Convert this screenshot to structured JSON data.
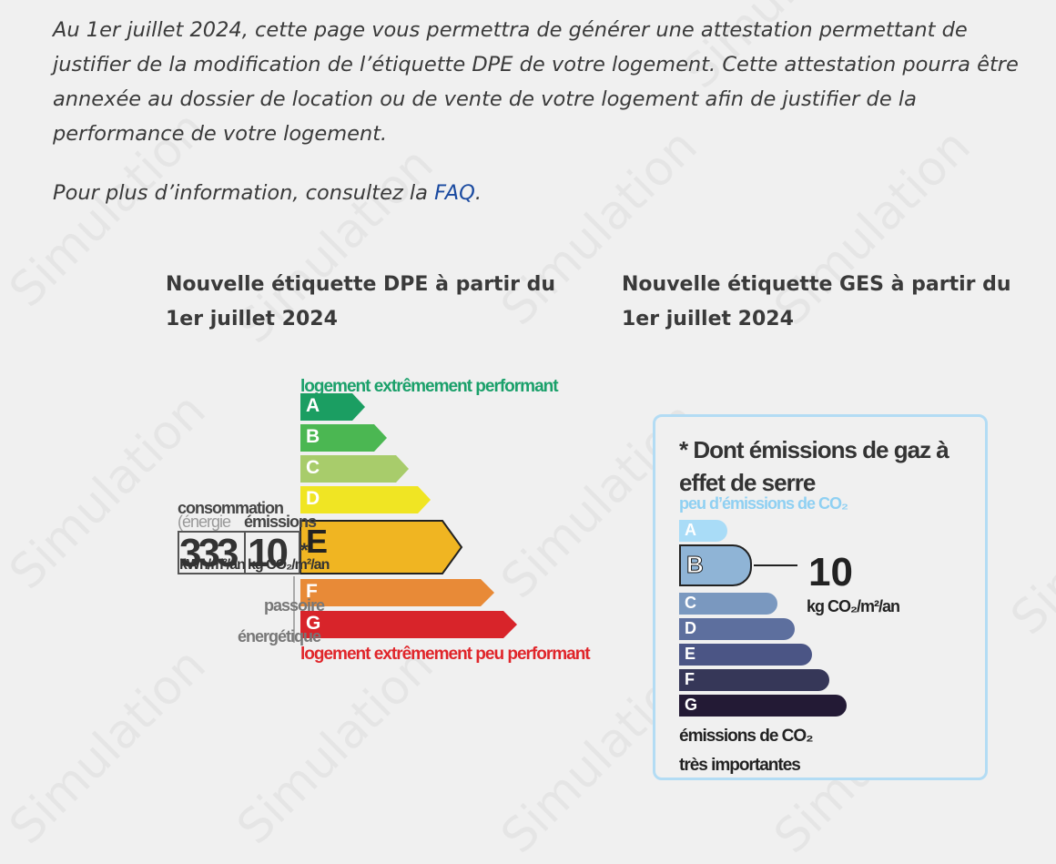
{
  "intro": {
    "text": "Au 1er juillet 2024, cette page vous permettra de générer une attestation permettant de justifier de la modification de l’étiquette DPE de votre logement. Cette attestation pourra être annexée au dossier de location ou de vente de votre logement afin de justifier de la performance de votre logement.",
    "more_prefix": "Pour plus d’information, consultez la ",
    "faq_link": "FAQ",
    "more_suffix": "."
  },
  "dpe": {
    "title": "Nouvelle étiquette DPE à partir du 1er juillet 2024",
    "top_caption": "logement extrêmement performant",
    "bottom_caption": "logement extrêmement peu performant",
    "classes": [
      "A",
      "B",
      "C",
      "D",
      "E",
      "F",
      "G"
    ],
    "current_class": "E",
    "consumption_label": "consommation",
    "energy_label": "(énergie",
    "emissions_label": "émissions",
    "consumption_value": "333",
    "emissions_value": "10",
    "star": "*",
    "unit_energy": "kWh/m²/an",
    "unit_co2": "kg CO₂/m²/an",
    "passoire_1": "passoire",
    "passoire_2": "énergétique",
    "colors": [
      "#1b9e62",
      "#4bb752",
      "#a8cc6b",
      "#f0e523",
      "#f0b522",
      "#e88a37",
      "#d8242a"
    ]
  },
  "ges": {
    "title": "Nouvelle étiquette GES à partir du 1er juillet 2024",
    "head": "* Dont émissions de gaz à effet de serre",
    "top_caption": "peu d’émissions de CO₂",
    "classes": [
      "A",
      "B",
      "C",
      "D",
      "E",
      "F",
      "G"
    ],
    "current_class": "B",
    "value": "10",
    "unit": "kg CO₂/m²/an",
    "bottom_caption_1": "émissions de CO₂",
    "bottom_caption_2": "très importantes",
    "colors": [
      "#a9dcf7",
      "#8fb4d6",
      "#7a98bf",
      "#5d6f9e",
      "#4b5585",
      "#363758",
      "#231a35"
    ]
  },
  "watermark": "Simulation"
}
